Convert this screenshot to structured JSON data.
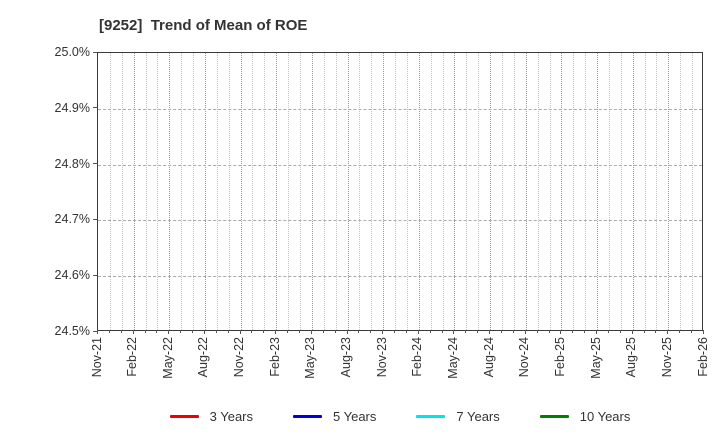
{
  "chart_data": {
    "type": "line",
    "title": "[9252]  Trend of Mean of ROE",
    "x_tick_labels": [
      "Nov-21",
      "Feb-22",
      "May-22",
      "Aug-22",
      "Nov-22",
      "Feb-23",
      "May-23",
      "Aug-23",
      "Nov-23",
      "Feb-24",
      "May-24",
      "Aug-24",
      "Nov-24",
      "Feb-25",
      "May-25",
      "Aug-25",
      "Nov-25",
      "Feb-26"
    ],
    "x_months_total": 51,
    "x_months_per_label": 3,
    "y_tick_labels": [
      "25.0%",
      "24.9%",
      "24.8%",
      "24.7%",
      "24.6%",
      "24.5%"
    ],
    "ylim": [
      24.5,
      25.0
    ],
    "y_tick_step": 0.1,
    "xlabel": "",
    "ylabel": "",
    "grid": "on",
    "legend_position": "bottom-center",
    "series": [
      {
        "name": "3 Years",
        "color": "#ee0000",
        "values": []
      },
      {
        "name": "5 Years",
        "color": "#0000dd",
        "values": []
      },
      {
        "name": "7 Years",
        "color": "#00e5e5",
        "values": []
      },
      {
        "name": "10 Years",
        "color": "#008000",
        "values": []
      }
    ]
  },
  "colors": {
    "background": "#ffffff",
    "text": "#333333",
    "spine": "#3a3a3a",
    "grid_major_vertical": "#999999",
    "grid_minor_vertical": "#c4c4c4",
    "grid_horizontal": "#ababab",
    "tick": "#555555"
  }
}
